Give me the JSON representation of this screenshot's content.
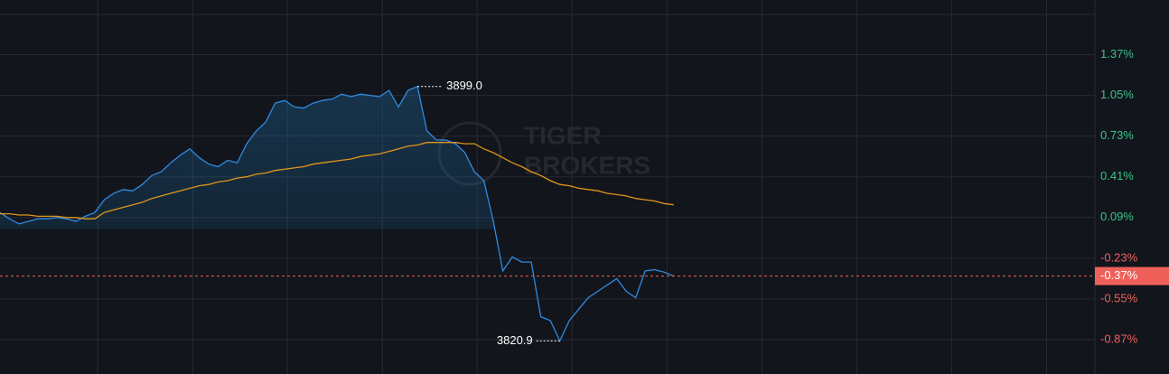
{
  "chart_data": {
    "type": "line",
    "watermark": [
      "TIGER",
      "BROKERS"
    ],
    "xlim": [
      0,
      115.4
    ],
    "xticks": [
      10.3,
      20.3,
      30.3,
      40.3,
      50.3,
      60.3,
      70.3,
      80.3,
      90.3,
      100.3,
      110.3
    ],
    "ylim": [
      -1.14,
      1.8
    ],
    "yticks": [
      {
        "value": 1.37,
        "label": "1.37%"
      },
      {
        "value": 1.05,
        "label": "1.05%"
      },
      {
        "value": 0.73,
        "label": "0.73%"
      },
      {
        "value": 0.41,
        "label": "0.41%"
      },
      {
        "value": 0.09,
        "label": "0.09%"
      },
      {
        "value": -0.23,
        "label": "-0.23%"
      },
      {
        "value": -0.55,
        "label": "-0.55%"
      },
      {
        "value": -0.87,
        "label": "-0.87%"
      }
    ],
    "grid": true,
    "positive_color": "#3ac48b",
    "negative_color": "#f0605a",
    "series": [
      {
        "color": "#2f8ae0",
        "values": [
          0.13,
          0.08,
          0.04,
          0.06,
          0.08,
          0.08,
          0.09,
          0.08,
          0.06,
          0.1,
          0.13,
          0.23,
          0.28,
          0.31,
          0.3,
          0.35,
          0.42,
          0.45,
          0.52,
          0.58,
          0.63,
          0.56,
          0.51,
          0.49,
          0.54,
          0.52,
          0.67,
          0.77,
          0.84,
          0.99,
          1.01,
          0.96,
          0.95,
          0.99,
          1.01,
          1.02,
          1.06,
          1.04,
          1.06,
          1.05,
          1.04,
          1.09,
          0.96,
          1.09,
          1.12,
          0.77,
          0.7,
          0.7,
          0.67,
          0.6,
          0.45,
          0.38,
          0.06,
          -0.33,
          -0.22,
          -0.26,
          -0.26,
          -0.69,
          -0.72,
          -0.88,
          -0.72,
          -0.63,
          -0.54,
          -0.49,
          -0.44,
          -0.39,
          -0.49,
          -0.54,
          -0.33,
          -0.32,
          -0.34,
          -0.37
        ]
      },
      {
        "color": "#e0951c",
        "values": [
          0.12,
          0.12,
          0.11,
          0.11,
          0.1,
          0.1,
          0.1,
          0.09,
          0.09,
          0.08,
          0.08,
          0.13,
          0.15,
          0.17,
          0.19,
          0.21,
          0.24,
          0.26,
          0.28,
          0.3,
          0.32,
          0.34,
          0.35,
          0.37,
          0.38,
          0.4,
          0.41,
          0.43,
          0.44,
          0.46,
          0.47,
          0.48,
          0.49,
          0.51,
          0.52,
          0.53,
          0.54,
          0.55,
          0.57,
          0.58,
          0.59,
          0.61,
          0.63,
          0.65,
          0.66,
          0.68,
          0.68,
          0.68,
          0.68,
          0.67,
          0.67,
          0.63,
          0.6,
          0.56,
          0.52,
          0.49,
          0.45,
          0.42,
          0.38,
          0.35,
          0.34,
          0.32,
          0.31,
          0.3,
          0.28,
          0.27,
          0.26,
          0.24,
          0.23,
          0.22,
          0.2,
          0.19
        ]
      }
    ],
    "high_label": "3899.0",
    "low_label": "3820.9",
    "last_label": {
      "value": -0.37,
      "label": "-0.37%"
    }
  }
}
